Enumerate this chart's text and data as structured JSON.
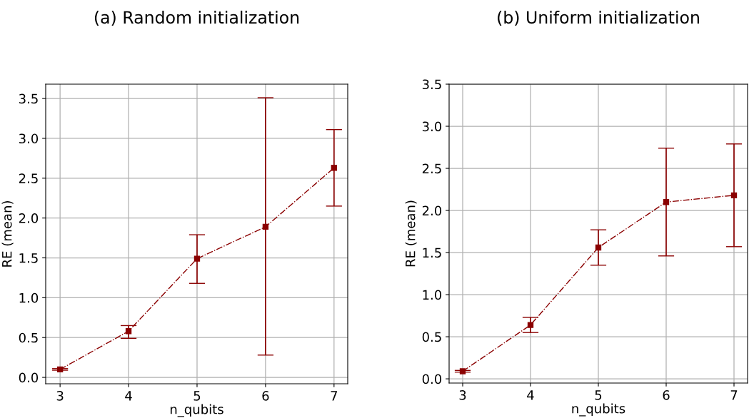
{
  "chart_data": [
    {
      "type": "line",
      "title": "(a) Random initialization",
      "xlabel": "n_qubits",
      "ylabel": "RE (mean)",
      "x": [
        3,
        4,
        5,
        6,
        7
      ],
      "series": [
        {
          "color": "#8b0000",
          "values": [
            0.1,
            0.58,
            1.49,
            1.89,
            2.63
          ],
          "errors": [
            [
              0.09,
              0.11
            ],
            [
              0.49,
              0.65
            ],
            [
              1.18,
              1.79
            ],
            [
              0.28,
              3.51
            ],
            [
              2.15,
              3.11
            ]
          ]
        }
      ],
      "xlim": [
        2.79,
        7.2
      ],
      "ylim": [
        -0.08,
        3.68
      ],
      "xticks": [
        3,
        4,
        5,
        6,
        7
      ],
      "yticks": [
        {
          "value": 0,
          "label": "0.0"
        },
        0.5,
        {
          "value": 1,
          "label": "1.0"
        },
        1.5,
        {
          "value": 2,
          "label": "2.0"
        },
        2.5,
        {
          "value": 3,
          "label": "3.0"
        },
        3.5
      ],
      "grid": true,
      "marker": "square",
      "line_style": "dashdot"
    },
    {
      "type": "line",
      "title": "(b) Uniform initialization",
      "xlabel": "n_qubits",
      "ylabel": "RE (mean)",
      "x": [
        3,
        4,
        5,
        6,
        7
      ],
      "series": [
        {
          "color": "#8b0000",
          "values": [
            0.09,
            0.64,
            1.56,
            2.1,
            2.18
          ],
          "errors": [
            [
              0.08,
              0.1
            ],
            [
              0.55,
              0.73
            ],
            [
              1.35,
              1.77
            ],
            [
              1.46,
              2.74
            ],
            [
              1.57,
              2.79
            ]
          ]
        }
      ],
      "xlim": [
        2.8,
        7.2
      ],
      "ylim": [
        -0.05,
        3.5
      ],
      "xticks": [
        3,
        4,
        5,
        6,
        7
      ],
      "yticks": [
        {
          "value": 0,
          "label": "0.0"
        },
        0.5,
        {
          "value": 1,
          "label": "1.0"
        },
        1.5,
        {
          "value": 2,
          "label": "2.0"
        },
        2.5,
        {
          "value": 3,
          "label": "3.0"
        },
        3.5
      ],
      "grid": true,
      "marker": "square",
      "line_style": "dashdot"
    }
  ]
}
